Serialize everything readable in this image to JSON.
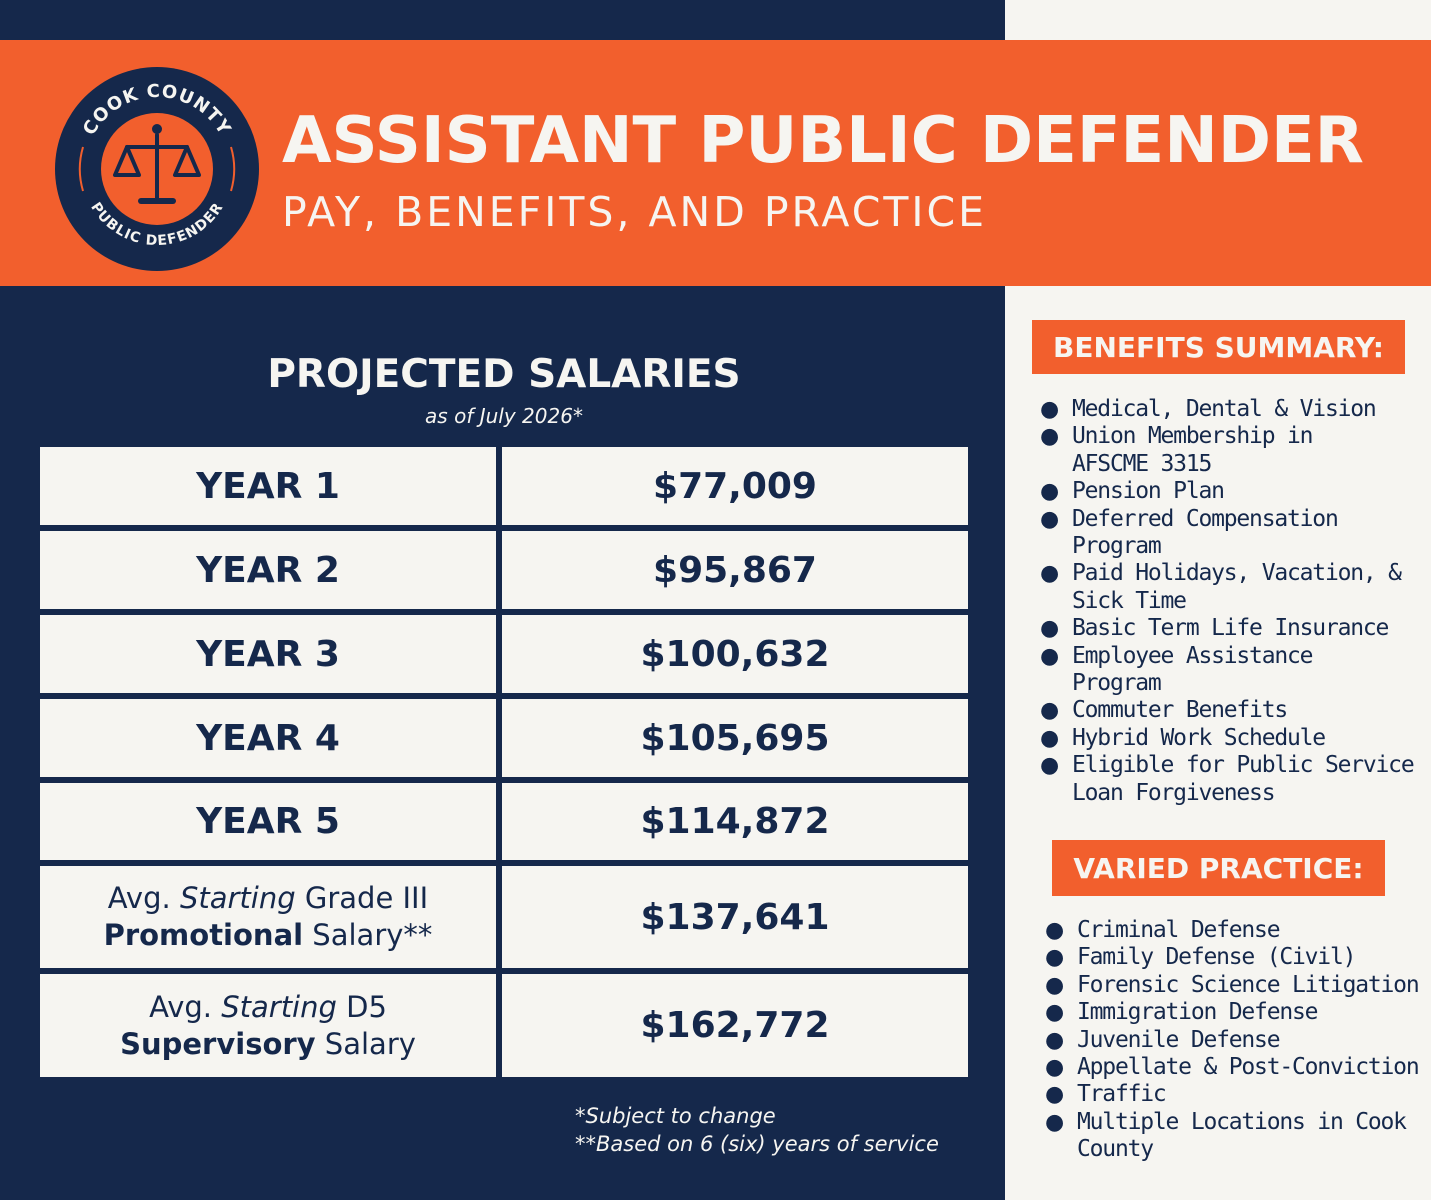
{
  "header": {
    "title": "ASSISTANT PUBLIC DEFENDER",
    "subtitle": "PAY, BENEFITS, AND PRACTICE"
  },
  "logo": {
    "top_text": "COOK COUNTY",
    "bottom_text": "PUBLIC DEFENDER"
  },
  "salaries": {
    "heading": "PROJECTED SALARIES",
    "subheading": "as of July 2026*",
    "years": [
      {
        "label": "YEAR 1",
        "amount": "$77,009"
      },
      {
        "label": "YEAR 2",
        "amount": "$95,867"
      },
      {
        "label": "YEAR 3",
        "amount": "$100,632"
      },
      {
        "label": "YEAR 4",
        "amount": "$105,695"
      },
      {
        "label": "YEAR 5",
        "amount": "$114,872"
      }
    ],
    "promotional": {
      "prefix": "Avg. ",
      "emphasis": "Starting",
      "grade": " Grade III",
      "bold": "Promotional",
      "suffix": " Salary**",
      "amount": "$137,641"
    },
    "supervisory": {
      "prefix": "Avg. ",
      "emphasis": "Starting",
      "grade": " D5",
      "bold": "Supervisory",
      "suffix": " Salary",
      "amount": "$162,772"
    },
    "footnotes": [
      "*Subject to change",
      "**Based on 6 (six) years of service"
    ]
  },
  "benefits": {
    "heading": "BENEFITS SUMMARY:",
    "items": [
      [
        "Medical, Dental & Vision"
      ],
      [
        "Union Membership in",
        "AFSCME 3315"
      ],
      [
        "Pension Plan"
      ],
      [
        "Deferred Compensation",
        "Program"
      ],
      [
        "Paid Holidays, Vacation, &",
        "Sick Time"
      ],
      [
        "Basic Term Life Insurance"
      ],
      [
        "Employee Assistance",
        "Program"
      ],
      [
        "Commuter Benefits"
      ],
      [
        "Hybrid Work Schedule"
      ],
      [
        "Eligible for Public Service",
        "Loan Forgiveness"
      ]
    ]
  },
  "practice": {
    "heading": "VARIED PRACTICE:",
    "items": [
      [
        "Criminal Defense"
      ],
      [
        "Family Defense (Civil)"
      ],
      [
        "Forensic Science Litigation"
      ],
      [
        "Immigration Defense"
      ],
      [
        "Juvenile Defense"
      ],
      [
        "Appellate & Post-Conviction"
      ],
      [
        "Traffic"
      ],
      [
        "Multiple Locations in Cook",
        "County"
      ]
    ]
  },
  "colors": {
    "navy": "#15284b",
    "orange": "#f25f2d",
    "cream": "#f6f5f1"
  }
}
